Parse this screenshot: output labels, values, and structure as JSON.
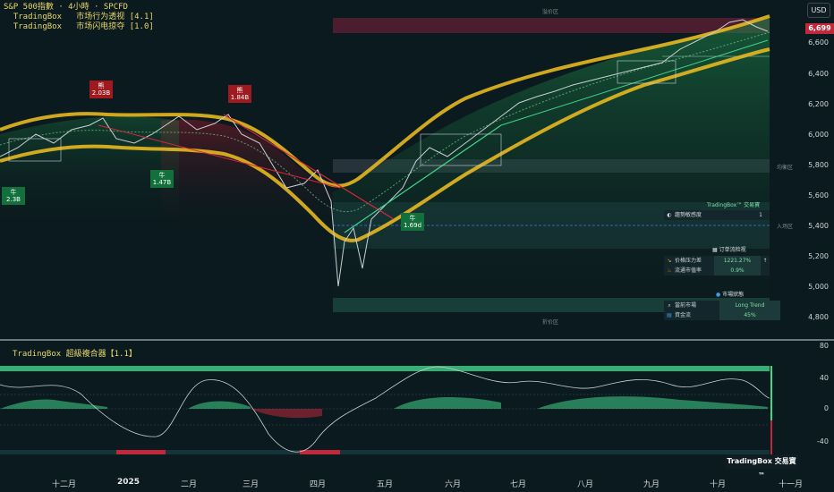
{
  "header": {
    "line1": "S&P 500指數 · 4小時 · SPCFD",
    "line2": "  TradingBox   市场行为透视 [4.1]",
    "line3": "  TradingBox   市场闪电掠夺 [1.0]"
  },
  "currency_button": "USD",
  "last_price": "6,699",
  "price_axis": [
    "6,600",
    "6,400",
    "6,200",
    "6,000",
    "5,800",
    "5,600",
    "5,400",
    "5,200",
    "5,000",
    "4,800"
  ],
  "zones": {
    "premium": "溢价区",
    "equilibrium": "均衡区",
    "entry": "入场区",
    "discount": "折价区"
  },
  "annotations": {
    "bull1": {
      "label": "牛",
      "value": "2.3B"
    },
    "bear1": {
      "label": "熊",
      "value": "2.03B"
    },
    "bull2": {
      "label": "牛",
      "value": "1.47B"
    },
    "bear2": {
      "label": "熊",
      "value": "1.84B"
    },
    "bull3": {
      "label": "牛",
      "value": "1.69d"
    }
  },
  "panel_trend": {
    "title": "TradingBox™ 交易寶",
    "rows": [
      {
        "icon": "gauge-icon",
        "label": "趨勢敏感度",
        "value": "1"
      }
    ]
  },
  "panel_orderflow": {
    "title": "订单流检视",
    "rows": [
      {
        "icon": "pressure-icon",
        "label": "价格压力差",
        "value": "1221.27%",
        "extra": "↑"
      },
      {
        "icon": "fire-icon",
        "label": "流通市值率",
        "value": "0.9%",
        "extra": ""
      }
    ]
  },
  "panel_market": {
    "title": "市場狀態",
    "rows": [
      {
        "icon": "magnifier-icon",
        "label": "當前市場",
        "value": "Long Trend"
      },
      {
        "icon": "chart-icon",
        "label": "資金流",
        "value": "45%"
      }
    ]
  },
  "sub_indicator": {
    "title": "TradingBox   超級複合器【1.1】",
    "axis": [
      "80",
      "40",
      "0",
      "-40"
    ]
  },
  "months": [
    "十二月",
    "2025",
    "二月",
    "三月",
    "四月",
    "五月",
    "六月",
    "七月",
    "八月",
    "九月",
    "十月",
    "十一月"
  ],
  "brand": "TradingBox 交易寶™",
  "colors": {
    "background": "#0b1a1e",
    "band_gold": "#e6b820",
    "bull_green": "#3fd68a",
    "bear_red": "#d6283a",
    "accent_yellow": "#e8d76a"
  }
}
